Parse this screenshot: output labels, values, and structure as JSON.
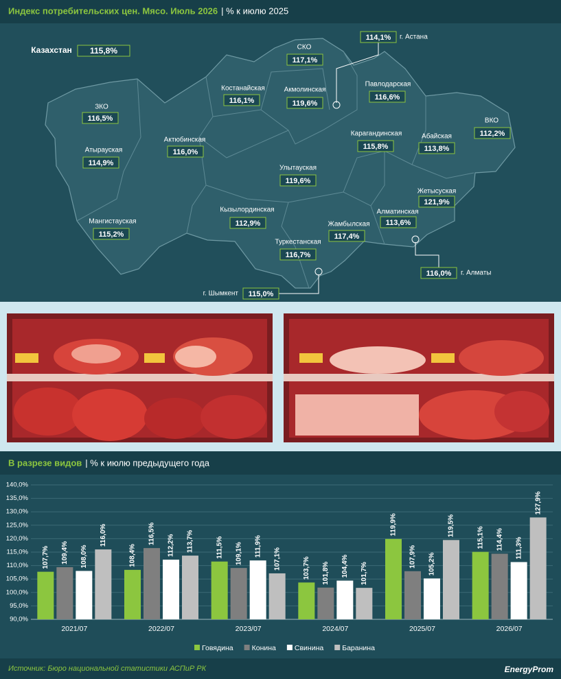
{
  "header": {
    "title": "Индекс потребительских цен. Мясо. Июль 2026",
    "subtitle": "| % к июлю 2025"
  },
  "map": {
    "regions": [
      {
        "name": "Казахстан",
        "value": "115,8%"
      },
      {
        "name": "СКО",
        "value": "117,1%"
      },
      {
        "name": "г. Астана",
        "value": "114,1%"
      },
      {
        "name": "Костанайская",
        "value": "116,1%"
      },
      {
        "name": "Акмолинская",
        "value": "119,6%"
      },
      {
        "name": "Павлодарская",
        "value": "116,6%"
      },
      {
        "name": "ЗКО",
        "value": "116,5%"
      },
      {
        "name": "ВКО",
        "value": "112,2%"
      },
      {
        "name": "Актюбинская",
        "value": "116,0%"
      },
      {
        "name": "Карагандинская",
        "value": "115,8%"
      },
      {
        "name": "Абайская",
        "value": "113,8%"
      },
      {
        "name": "Атырауская",
        "value": "114,9%"
      },
      {
        "name": "Улытауская",
        "value": "119,6%"
      },
      {
        "name": "Жетысуская",
        "value": "121,9%"
      },
      {
        "name": "Кызылординская",
        "value": "112,9%"
      },
      {
        "name": "Алматинская",
        "value": "113,6%"
      },
      {
        "name": "Мангистауская",
        "value": "115,2%"
      },
      {
        "name": "Жамбылская",
        "value": "117,4%"
      },
      {
        "name": "Туркестанская",
        "value": "116,7%"
      },
      {
        "name": "г. Алматы",
        "value": "116,0%"
      },
      {
        "name": "г. Шымкент",
        "value": "115,0%"
      }
    ]
  },
  "chart_data": {
    "type": "bar",
    "title": "В разрезе видов",
    "subtitle": "| % к июлю предыдущего года",
    "categories": [
      "2021/07",
      "2022/07",
      "2023/07",
      "2024/07",
      "2025/07",
      "2026/07"
    ],
    "series": [
      {
        "name": "Говядина",
        "color": "#8cc63f",
        "values": [
          107.7,
          108.4,
          111.5,
          103.7,
          119.9,
          115.1
        ],
        "value_labels": [
          "107,7%",
          "108,4%",
          "111,5%",
          "103,7%",
          "119,9%",
          "115,1%"
        ]
      },
      {
        "name": "Конина",
        "color": "#7f7f7f",
        "values": [
          109.4,
          116.5,
          109.1,
          101.8,
          107.9,
          114.4
        ],
        "value_labels": [
          "109,4%",
          "116,5%",
          "109,1%",
          "101,8%",
          "107,9%",
          "114,4%"
        ]
      },
      {
        "name": "Свинина",
        "color": "#ffffff",
        "values": [
          108.0,
          112.2,
          111.9,
          104.4,
          105.2,
          111.3
        ],
        "value_labels": [
          "108,0%",
          "112,2%",
          "111,9%",
          "104,4%",
          "105,2%",
          "111,3%"
        ]
      },
      {
        "name": "Баранина",
        "color": "#bfbfbf",
        "values": [
          116.0,
          113.7,
          107.1,
          101.7,
          119.5,
          127.9
        ],
        "value_labels": [
          "116,0%",
          "113,7%",
          "107,1%",
          "101,7%",
          "119,5%",
          "127,9%"
        ]
      }
    ],
    "ylim": [
      90,
      140
    ],
    "yticks": [
      {
        "value": 90,
        "label": "90,0%"
      },
      {
        "value": 95,
        "label": "95,0%"
      },
      {
        "value": 100,
        "label": "100,0%"
      },
      {
        "value": 105,
        "label": "105,0%"
      },
      {
        "value": 110,
        "label": "110,0%"
      },
      {
        "value": 115,
        "label": "115,0%"
      },
      {
        "value": 120,
        "label": "120,0%"
      },
      {
        "value": 125,
        "label": "125,0%"
      },
      {
        "value": 130,
        "label": "130,0%"
      },
      {
        "value": 135,
        "label": "135,0%"
      },
      {
        "value": 140,
        "label": "140,0%"
      }
    ],
    "grid": true
  },
  "footer": {
    "source": "Источник: Бюро национальной статистики АСПиР РК",
    "logo": "EnergyProm"
  }
}
